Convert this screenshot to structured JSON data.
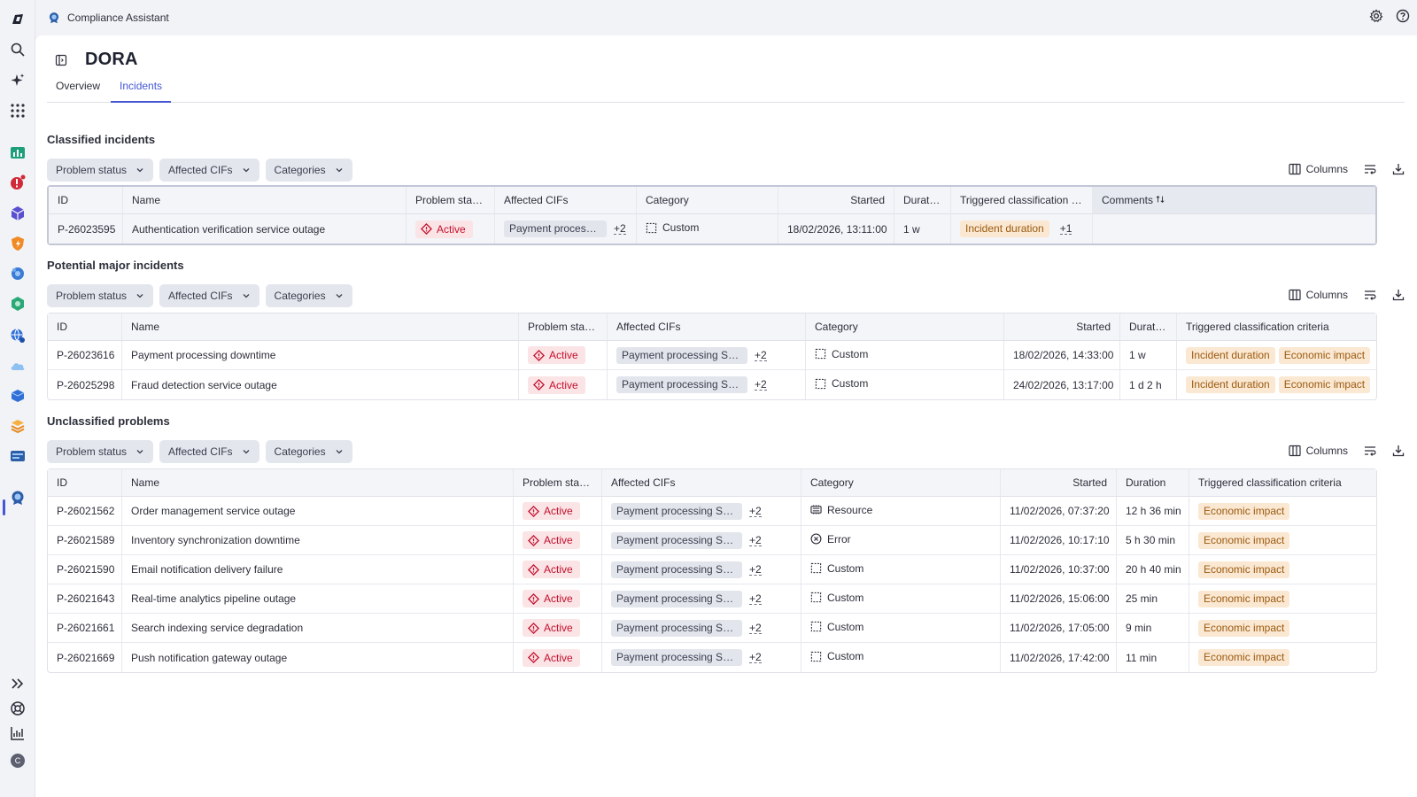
{
  "app": {
    "title": "Compliance Assistant"
  },
  "rail_icons": [
    "app-logo-icon",
    "search-icon",
    "sparkle-icon",
    "apps-grid-icon",
    "app-chart-icon",
    "app-alert-icon",
    "app-cube-icon",
    "app-shield-icon",
    "app-gear-icon",
    "app-hexagon-icon",
    "app-globe-icon",
    "app-cloud-icon",
    "app-box-icon",
    "app-layers-icon",
    "app-database-icon",
    "compliance-assistant-icon",
    "expand-icon",
    "support-icon",
    "analytics-icon",
    "user-avatar"
  ],
  "user": {
    "initial": "C"
  },
  "page": {
    "title": "DORA",
    "tabs": [
      "Overview",
      "Incidents"
    ],
    "active_tab": "Incidents"
  },
  "filters": {
    "problem_status": "Problem status",
    "affected_cifs": "Affected CIFs",
    "categories": "Categories"
  },
  "toolbar": {
    "columns": "Columns"
  },
  "columns_std": {
    "id": "ID",
    "name": "Name",
    "status": "Problem status",
    "cifs": "Affected CIFs",
    "category": "Category",
    "started": "Started",
    "duration": "Duration",
    "criteria": "Triggered classification criteria"
  },
  "classified": {
    "title": "Classified incidents",
    "criteria_short": "Triggered classification c...",
    "comments": "Comments",
    "rows": [
      {
        "id": "P-26023595",
        "name": "Authentication verification service outage",
        "status": "Active",
        "cif": "Payment processing SEPA",
        "more": "+2",
        "category": "Custom",
        "started": "18/02/2026, 13:11:00",
        "duration": "1 w",
        "criteria": [
          "Incident duration"
        ],
        "criteria_more": "+1"
      }
    ]
  },
  "major": {
    "title": "Potential major incidents",
    "rows": [
      {
        "id": "P-26023616",
        "name": "Payment processing downtime",
        "status": "Active",
        "cif": "Payment processing SEPA",
        "more": "+2",
        "category": "Custom",
        "started": "18/02/2026, 14:33:00",
        "duration": "1 w",
        "criteria": [
          "Incident duration",
          "Economic impact"
        ]
      },
      {
        "id": "P-26025298",
        "name": "Fraud detection service outage",
        "status": "Active",
        "cif": "Payment processing SEPA",
        "more": "+2",
        "category": "Custom",
        "started": "24/02/2026, 13:17:00",
        "duration": "1 d 2 h",
        "criteria": [
          "Incident duration",
          "Economic impact"
        ]
      }
    ]
  },
  "unclassified": {
    "title": "Unclassified problems",
    "rows": [
      {
        "id": "P-26021562",
        "name": "Order management service outage",
        "status": "Active",
        "cif": "Payment processing SEPA",
        "more": "+2",
        "category": "Resource",
        "category_icon": "resource-icon",
        "started": "11/02/2026, 07:37:20",
        "duration": "12 h 36 min",
        "criteria": [
          "Economic impact"
        ]
      },
      {
        "id": "P-26021589",
        "name": "Inventory synchronization downtime",
        "status": "Active",
        "cif": "Payment processing SEPA",
        "more": "+2",
        "category": "Error",
        "category_icon": "error-icon",
        "started": "11/02/2026, 10:17:10",
        "duration": "5 h 30 min",
        "criteria": [
          "Economic impact"
        ]
      },
      {
        "id": "P-26021590",
        "name": "Email notification delivery failure",
        "status": "Active",
        "cif": "Payment processing SEPA",
        "more": "+2",
        "category": "Custom",
        "category_icon": "custom-icon",
        "started": "11/02/2026, 10:37:00",
        "duration": "20 h 40 min",
        "criteria": [
          "Economic impact"
        ]
      },
      {
        "id": "P-26021643",
        "name": "Real-time analytics pipeline outage",
        "status": "Active",
        "cif": "Payment processing SEPA",
        "more": "+2",
        "category": "Custom",
        "category_icon": "custom-icon",
        "started": "11/02/2026, 15:06:00",
        "duration": "25 min",
        "criteria": [
          "Economic impact"
        ]
      },
      {
        "id": "P-26021661",
        "name": "Search indexing service degradation",
        "status": "Active",
        "cif": "Payment processing SEPA",
        "more": "+2",
        "category": "Custom",
        "category_icon": "custom-icon",
        "started": "11/02/2026, 17:05:00",
        "duration": "9 min",
        "criteria": [
          "Economic impact"
        ]
      },
      {
        "id": "P-26021669",
        "name": "Push notification gateway outage",
        "status": "Active",
        "cif": "Payment processing SEPA",
        "more": "+2",
        "category": "Custom",
        "category_icon": "custom-icon",
        "started": "11/02/2026, 17:42:00",
        "duration": "11 min",
        "criteria": [
          "Economic impact"
        ]
      }
    ]
  },
  "colors": {
    "accent": "#4556d4",
    "active_bg": "#fbe4e6",
    "active_fg": "#c4102d",
    "criteria_bg": "#fbe8d2",
    "criteria_fg": "#9a5a10",
    "chip_bg": "#e3e5ed"
  }
}
